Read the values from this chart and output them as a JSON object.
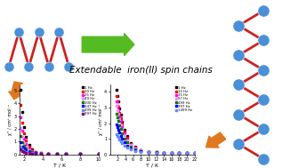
{
  "title": "Extendable  iron(II) spin chains",
  "title_fontsize": 7.5,
  "bg_color": "#ffffff",
  "node_color": "#4a90d9",
  "bond_color": "#cc2222",
  "plot1_legend": [
    "1 Hz",
    "10 Hz",
    "25 Hz",
    "49 Hz",
    "100 Hz",
    "247 Hz",
    "499 Hz",
    "997 Hz"
  ],
  "plot1_colors": [
    "black",
    "red",
    "magenta",
    "#ff88ff",
    "green",
    "blue",
    "#6688ff",
    "purple"
  ],
  "plot1_xlabel": "T / K",
  "plot1_xlim": [
    1.5,
    10
  ],
  "plot1_ylim": [
    0,
    5.5
  ],
  "plot1_xticks": [
    2,
    4,
    6,
    8,
    10
  ],
  "plot2_legend": [
    "1 Hz",
    "10 Hz",
    "25 Hz",
    "97 Hz",
    "499 Hz",
    "997 Hz",
    "1499 Hz"
  ],
  "plot2_colors": [
    "black",
    "red",
    "magenta",
    "#ff88ff",
    "green",
    "blue",
    "#6688ff"
  ],
  "plot2_xlabel": "T / K",
  "plot2_xlim": [
    0,
    22
  ],
  "plot2_ylim": [
    0,
    4.5
  ],
  "plot2_xticks": [
    2,
    4,
    6,
    8,
    10,
    12,
    14,
    16,
    18,
    20,
    22
  ],
  "green_arrow_color": "#55bb22",
  "orange_arrow_color": "#e07820"
}
